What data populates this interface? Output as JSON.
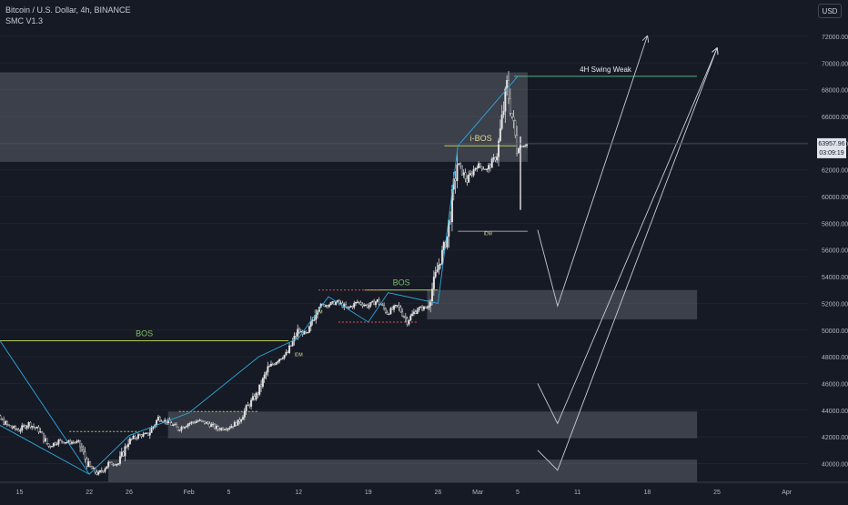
{
  "header": {
    "title": "Bitcoin / U.S. Dollar, 4h, BINANCE",
    "indicator": "SMC V1.3",
    "currency": "USD"
  },
  "price_label": {
    "value": "63957.96",
    "countdown": "03:09:19"
  },
  "colors": {
    "background": "#161a25",
    "up_candle": "#e6e6e6",
    "down_candle": "#2a2d38",
    "structure_line": "#b5c95a",
    "zigzag": "#2ea9dc",
    "zone": "#9598a1",
    "swing_line": "#4caf8a",
    "projection": "#c9ccd3"
  },
  "chart_data": {
    "type": "candlestick",
    "title": "Bitcoin / U.S. Dollar, 4h, BINANCE",
    "x_tick_labels": [
      "15",
      "22",
      "26",
      "Feb",
      "5",
      "12",
      "19",
      "26",
      "Mar",
      "5",
      "11",
      "18",
      "25",
      "Apr"
    ],
    "y_tick_labels": [
      "40000.00",
      "42000.00",
      "44000.00",
      "46000.00",
      "48000.00",
      "50000.00",
      "52000.00",
      "54000.00",
      "56000.00",
      "58000.00",
      "60000.00",
      "62000.00",
      "64000.00",
      "66000.00",
      "68000.00",
      "70000.00",
      "72000.00"
    ],
    "y_range": [
      38500,
      73800
    ],
    "price_path": [
      {
        "date": "2024-01-11",
        "price": 43000
      },
      {
        "date": "2024-01-12",
        "price": 42900
      },
      {
        "date": "2024-01-13",
        "price": 43400
      },
      {
        "date": "2024-01-14",
        "price": 42800
      },
      {
        "date": "2024-01-15",
        "price": 42500
      },
      {
        "date": "2024-01-16",
        "price": 43000
      },
      {
        "date": "2024-01-17",
        "price": 42500
      },
      {
        "date": "2024-01-18",
        "price": 41300
      },
      {
        "date": "2024-01-19",
        "price": 41700
      },
      {
        "date": "2024-01-20",
        "price": 41600
      },
      {
        "date": "2024-01-21",
        "price": 41600
      },
      {
        "date": "2024-01-22",
        "price": 39800
      },
      {
        "date": "2024-01-23",
        "price": 39200
      },
      {
        "date": "2024-01-24",
        "price": 40000
      },
      {
        "date": "2024-01-25",
        "price": 40000
      },
      {
        "date": "2024-01-26",
        "price": 41700
      },
      {
        "date": "2024-01-27",
        "price": 42100
      },
      {
        "date": "2024-01-28",
        "price": 42200
      },
      {
        "date": "2024-01-29",
        "price": 43400
      },
      {
        "date": "2024-01-30",
        "price": 43100
      },
      {
        "date": "2024-01-31",
        "price": 42600
      },
      {
        "date": "2024-02-01",
        "price": 43000
      },
      {
        "date": "2024-02-02",
        "price": 43200
      },
      {
        "date": "2024-02-03",
        "price": 43000
      },
      {
        "date": "2024-02-04",
        "price": 42600
      },
      {
        "date": "2024-02-05",
        "price": 42700
      },
      {
        "date": "2024-02-06",
        "price": 43100
      },
      {
        "date": "2024-02-07",
        "price": 44300
      },
      {
        "date": "2024-02-08",
        "price": 45300
      },
      {
        "date": "2024-02-09",
        "price": 47100
      },
      {
        "date": "2024-02-10",
        "price": 47800
      },
      {
        "date": "2024-02-11",
        "price": 48300
      },
      {
        "date": "2024-02-12",
        "price": 49900
      },
      {
        "date": "2024-02-13",
        "price": 49700
      },
      {
        "date": "2024-02-14",
        "price": 51800
      },
      {
        "date": "2024-02-15",
        "price": 51900
      },
      {
        "date": "2024-02-16",
        "price": 52100
      },
      {
        "date": "2024-02-17",
        "price": 51600
      },
      {
        "date": "2024-02-18",
        "price": 52100
      },
      {
        "date": "2024-02-19",
        "price": 51800
      },
      {
        "date": "2024-02-20",
        "price": 52200
      },
      {
        "date": "2024-02-21",
        "price": 51300
      },
      {
        "date": "2024-02-22",
        "price": 51800
      },
      {
        "date": "2024-02-23",
        "price": 50700
      },
      {
        "date": "2024-02-24",
        "price": 51600
      },
      {
        "date": "2024-02-25",
        "price": 51700
      },
      {
        "date": "2024-02-26",
        "price": 54500
      },
      {
        "date": "2024-02-27",
        "price": 57000
      },
      {
        "date": "2024-02-28",
        "price": 62500
      },
      {
        "date": "2024-02-29",
        "price": 61200
      },
      {
        "date": "2024-03-01",
        "price": 62400
      },
      {
        "date": "2024-03-02",
        "price": 62000
      },
      {
        "date": "2024-03-03",
        "price": 63100
      },
      {
        "date": "2024-03-04",
        "price": 68300
      },
      {
        "date": "2024-03-05",
        "price": 63700
      },
      {
        "date": "2024-03-06",
        "price": 63958
      }
    ],
    "last_price": 63957.96,
    "zones": [
      {
        "from": "2024-01-11",
        "to": "2024-03-06",
        "low": 62600,
        "high": 69300
      },
      {
        "from": "2024-02-26",
        "to": "2024-03-23",
        "low": 50800,
        "high": 53000
      },
      {
        "from": "2024-01-31",
        "to": "2024-03-23",
        "low": 41900,
        "high": 43900
      },
      {
        "from": "2024-01-25",
        "to": "2024-03-23",
        "low": 38600,
        "high": 40300
      }
    ],
    "structure_levels": [
      {
        "label": "BOS",
        "price": 49200,
        "from": "2024-01-11",
        "to": "2024-02-11"
      },
      {
        "label": "BOS",
        "price": 53000,
        "from": "2024-02-19",
        "to": "2024-02-26"
      },
      {
        "label": "i-BOS",
        "price": 63800,
        "from": "2024-02-27",
        "to": "2024-03-05"
      },
      {
        "label": "4H Swing Weak",
        "price": 69000,
        "from": "2024-03-05",
        "to": "2024-03-23"
      }
    ],
    "idm_labels": [
      {
        "label": "IDM",
        "date": "2024-02-12",
        "price": 48050
      },
      {
        "label": "IDM",
        "date": "2024-02-14",
        "price": 51250
      },
      {
        "label": "IDM",
        "date": "2024-03-02",
        "price": 57100
      }
    ],
    "projections": [
      {
        "points": [
          {
            "date": "2024-03-07",
            "price": 57500
          },
          {
            "date": "2024-03-09",
            "price": 51800
          },
          {
            "date": "2024-03-18",
            "price": 72000
          }
        ]
      },
      {
        "points": [
          {
            "date": "2024-03-07",
            "price": 46000
          },
          {
            "date": "2024-03-09",
            "price": 43000
          },
          {
            "date": "2024-03-25",
            "price": 71100
          }
        ]
      },
      {
        "points": [
          {
            "date": "2024-03-07",
            "price": 41000
          },
          {
            "date": "2024-03-09",
            "price": 39500
          },
          {
            "date": "2024-03-25",
            "price": 71100
          }
        ]
      }
    ]
  }
}
